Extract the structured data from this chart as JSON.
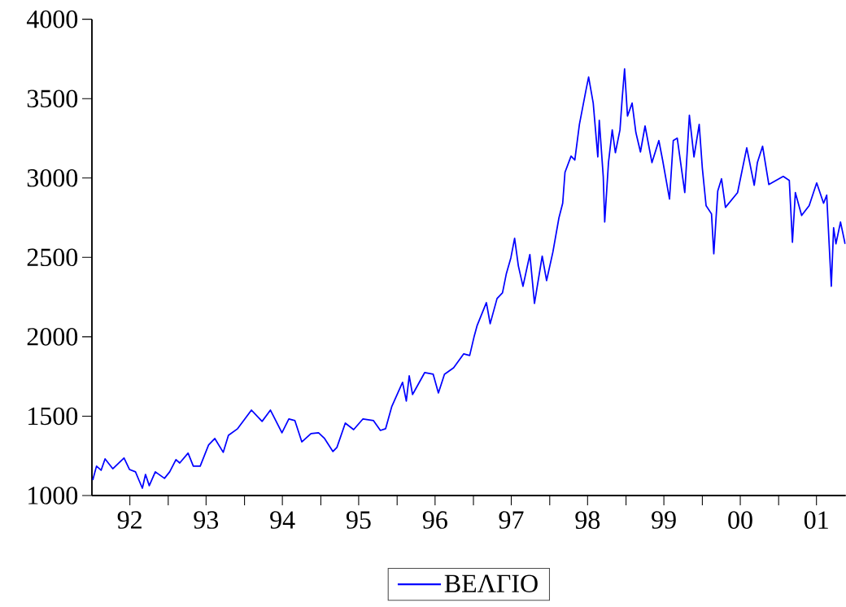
{
  "chart_data": {
    "type": "line",
    "x": [
      "1992-01-05",
      "1992-01-23",
      "1992-02-14",
      "1992-03-04",
      "1992-04-10",
      "1992-06-03",
      "1992-06-29",
      "1992-07-28",
      "1992-08-15",
      "1992-08-30",
      "1992-09-14",
      "1992-10-02",
      "1992-10-31",
      "1992-12-14",
      "1993-01-08",
      "1993-02-07",
      "1993-02-25",
      "1993-04-06",
      "1993-05-01",
      "1993-06-03",
      "1993-07-13",
      "1993-08-12",
      "1993-09-21",
      "1993-10-16",
      "1993-11-29",
      "1994-01-08",
      "1994-02-03",
      "1994-03-26",
      "1994-05-05",
      "1994-06-29",
      "1994-08-01",
      "1994-08-30",
      "1994-10-02",
      "1994-11-15",
      "1994-12-21",
      "1995-01-19",
      "1995-02-28",
      "1995-03-19",
      "1995-04-28",
      "1995-06-07",
      "1995-07-21",
      "1995-09-10",
      "1995-10-13",
      "1995-11-07",
      "1995-12-06",
      "1996-01-27",
      "1996-02-14",
      "1996-02-28",
      "1996-03-15",
      "1996-05-12",
      "1996-06-22",
      "1996-07-17",
      "1996-08-15",
      "1996-09-28",
      "1996-11-15",
      "1996-12-14",
      "1997-01-05",
      "1997-01-19",
      "1997-03-04",
      "1997-03-22",
      "1997-04-24",
      "1997-05-20",
      "1997-06-07",
      "1997-06-29",
      "1997-07-17",
      "1997-08-04",
      "1997-08-26",
      "1997-09-28",
      "1997-10-20",
      "1997-11-26",
      "1997-12-17",
      "1998-01-16",
      "1998-02-14",
      "1998-03-04",
      "1998-03-15",
      "1998-04-13",
      "1998-05-01",
      "1998-05-23",
      "1998-06-22",
      "1998-07-06",
      "1998-07-28",
      "1998-08-19",
      "1998-08-26",
      "1998-09-14",
      "1998-09-21",
      "1998-10-09",
      "1998-10-27",
      "1998-11-11",
      "1998-12-03",
      "1998-12-14",
      "1998-12-25",
      "1999-01-08",
      "1999-01-30",
      "1999-02-17",
      "1999-03-11",
      "1999-04-02",
      "1999-05-05",
      "1999-06-07",
      "1999-06-25",
      "1999-07-28",
      "1999-08-15",
      "1999-09-03",
      "1999-10-09",
      "1999-10-31",
      "1999-11-22",
      "1999-12-17",
      "2000-01-01",
      "2000-01-19",
      "2000-02-14",
      "2000-02-25",
      "2000-03-15",
      "2000-04-02",
      "2000-04-21",
      "2000-06-18",
      "2000-08-01",
      "2000-09-06",
      "2000-09-21",
      "2000-10-16",
      "2000-11-15",
      "2001-01-23",
      "2001-02-21",
      "2001-03-08",
      "2001-03-22",
      "2001-04-21",
      "2001-05-27",
      "2001-07-02",
      "2001-08-04",
      "2001-08-19",
      "2001-08-30",
      "2001-09-10",
      "2001-09-21",
      "2001-10-02",
      "2001-10-24",
      "2001-11-15"
    ],
    "series": [
      {
        "name": "ΒΕΛΓΙΟ",
        "color": "#0000ff",
        "values": [
          1097,
          1185,
          1159,
          1231,
          1169,
          1236,
          1164,
          1149,
          1092,
          1046,
          1133,
          1062,
          1149,
          1108,
          1149,
          1226,
          1205,
          1267,
          1185,
          1185,
          1318,
          1359,
          1272,
          1379,
          1421,
          1492,
          1538,
          1467,
          1538,
          1395,
          1482,
          1472,
          1338,
          1390,
          1395,
          1359,
          1277,
          1303,
          1456,
          1415,
          1482,
          1472,
          1410,
          1421,
          1559,
          1713,
          1595,
          1754,
          1636,
          1774,
          1764,
          1646,
          1764,
          1805,
          1892,
          1882,
          2005,
          2072,
          2215,
          2082,
          2241,
          2277,
          2395,
          2497,
          2620,
          2446,
          2318,
          2518,
          2210,
          2508,
          2354,
          2533,
          2749,
          2841,
          3036,
          3138,
          3113,
          3338,
          3544,
          3636,
          3472,
          3133,
          3364,
          3010,
          2723,
          3097,
          3303,
          3159,
          3303,
          3508,
          3687,
          3390,
          3472,
          3287,
          3164,
          3328,
          3097,
          3236,
          3113,
          2867,
          3236,
          3251,
          2908,
          3395,
          3133,
          3338,
          3062,
          2826,
          2774,
          2523,
          2918,
          2995,
          2815,
          2908,
          3190,
          2954,
          3097,
          3200,
          2959,
          3010,
          2985,
          2595,
          2908,
          2764,
          2826,
          2969,
          2841,
          2892,
          2600,
          2318,
          2687,
          2585,
          2723,
          2585
        ]
      }
    ],
    "xlim": [
      "1992-01-01",
      "2001-11-18"
    ],
    "ylim": [
      1000,
      4000
    ],
    "xticks": [
      {
        "value": "1992-07-01",
        "label": "92"
      },
      {
        "value": "1993-01-01",
        "label": null
      },
      {
        "value": "1993-07-01",
        "label": "93"
      },
      {
        "value": "1994-01-01",
        "label": null
      },
      {
        "value": "1994-07-01",
        "label": "94"
      },
      {
        "value": "1995-01-01",
        "label": null
      },
      {
        "value": "1995-07-01",
        "label": "95"
      },
      {
        "value": "1996-01-01",
        "label": null
      },
      {
        "value": "1996-07-01",
        "label": "96"
      },
      {
        "value": "1997-01-01",
        "label": null
      },
      {
        "value": "1997-07-01",
        "label": "97"
      },
      {
        "value": "1998-01-01",
        "label": null
      },
      {
        "value": "1998-07-01",
        "label": "98"
      },
      {
        "value": "1999-01-01",
        "label": null
      },
      {
        "value": "1999-07-01",
        "label": "99"
      },
      {
        "value": "2000-01-01",
        "label": null
      },
      {
        "value": "2000-07-01",
        "label": "00"
      },
      {
        "value": "2001-01-01",
        "label": null
      },
      {
        "value": "2001-07-01",
        "label": "01"
      }
    ],
    "yticks": [
      1000,
      1500,
      2000,
      2500,
      3000,
      3500,
      4000
    ],
    "legend": "bottom"
  }
}
